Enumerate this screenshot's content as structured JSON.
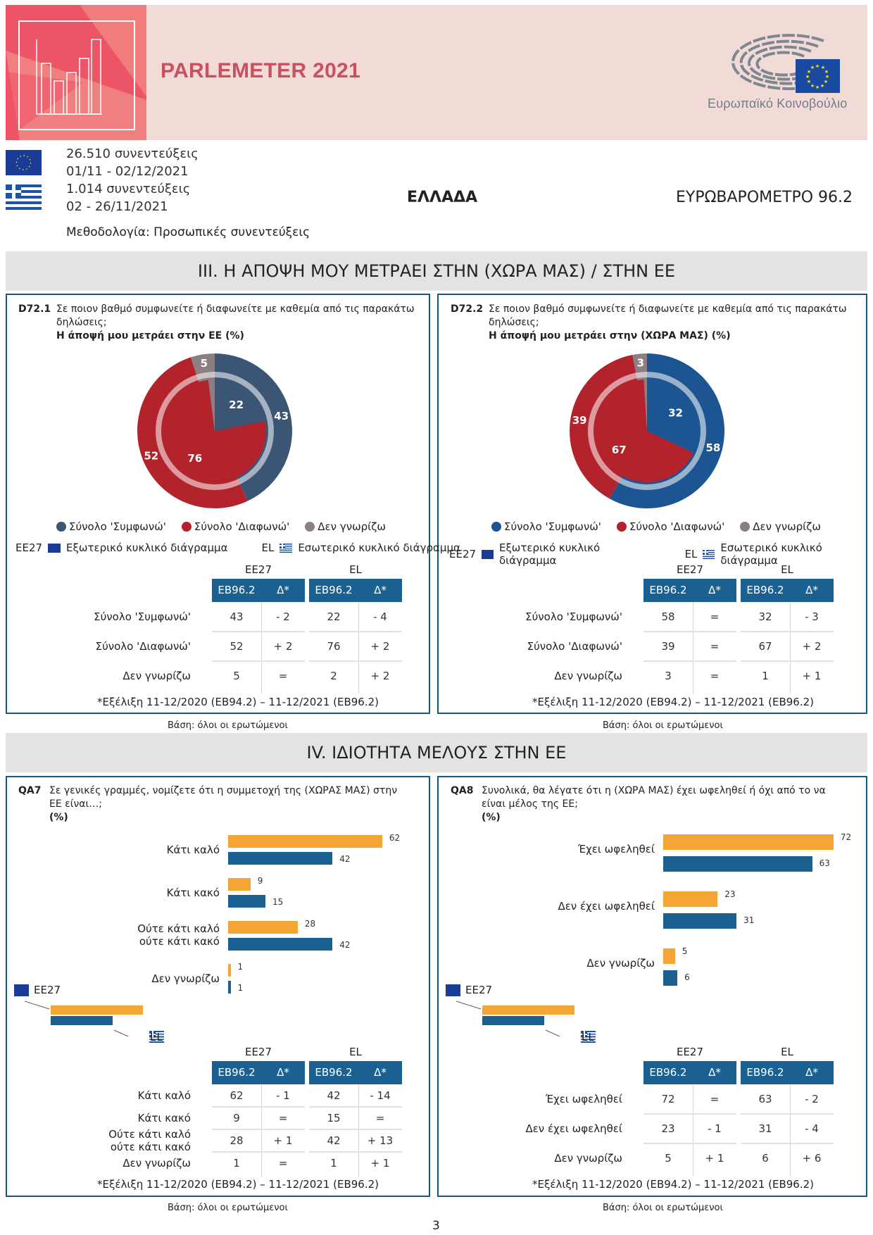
{
  "header": {
    "title": "PARLEMETER 2021",
    "institution": "Ευρωπαϊκό Κοινοβούλιο",
    "eu_interviews": "26.510 συνεντεύξεις",
    "eu_dates": "01/11 - 02/12/2021",
    "gr_interviews": "1.014 συνεντεύξεις",
    "gr_dates": "02 - 26/11/2021",
    "methodology": "Μεθοδολογία: Προσωπικές συνεντεύξεις",
    "country": "ΕΛΛΑΔΑ",
    "survey": "ΕΥΡΩΒΑΡΟΜΕΤΡΟ 96.2"
  },
  "colors": {
    "agree_eu_slate": "#3B5675",
    "agree_blue": "#1D5592",
    "disagree_red": "#B3232C",
    "dontknow_grey": "#8C7F84",
    "ee27_orange": "#F4A534",
    "el_blue": "#1A6191",
    "panel_border": "#19597E"
  },
  "sections": {
    "s3": "III. Η ΑΠΟΨΗ ΜΟΥ ΜΕΤΡΑΕΙ ΣΤΗΝ (ΧΩΡΑ ΜΑΣ) / ΣΤΗΝ ΕΕ",
    "s4": "IV. ΙΔΙΟΤΗΤΑ ΜΕΛΟΥΣ ΣΤΗΝ ΕΕ"
  },
  "common": {
    "legend_agree": "Σύνολο 'Συμφωνώ'",
    "legend_disagree": "Σύνολο 'Διαφωνώ'",
    "legend_dk": "Δεν γνωρίζω",
    "ee27": "ΕΕ27",
    "el": "EL",
    "outer_pie": "Εξωτερικό κυκλικό διάγραμμα",
    "inner_pie": "Εσωτερικό κυκλικό διάγραμμα",
    "col_wave": "EB96.2",
    "col_delta": "Δ*",
    "evolution_note": "*Εξέλιξη 11-12/2020 (EB94.2) – 11-12/2021 (EB96.2)",
    "base": "Βάση: όλοι οι ερωτώμενοι",
    "page_number": "3"
  },
  "chart_data": [
    {
      "type": "pie",
      "id": "D72.1",
      "question": "Σε ποιον βαθμό συμφωνείτε ή διαφωνείτε με καθεμία από τις παρακάτω δηλώσεις;",
      "title": "Η άποψή μου μετράει στην ΕΕ  (%)",
      "categories": [
        "Σύνολο 'Συμφωνώ'",
        "Σύνολο 'Διαφωνώ'",
        "Δεν γνωρίζω"
      ],
      "series": [
        {
          "name": "ΕΕ27 (outer)",
          "values": [
            43,
            52,
            5
          ]
        },
        {
          "name": "EL (inner)",
          "values": [
            22,
            76,
            2
          ]
        }
      ],
      "table": [
        {
          "label": "Σύνολο 'Συμφωνώ'",
          "ee27": "43",
          "ee27_delta": "- 2",
          "el": "22",
          "el_delta": "- 4"
        },
        {
          "label": "Σύνολο 'Διαφωνώ'",
          "ee27": "52",
          "ee27_delta": "+ 2",
          "el": "76",
          "el_delta": "+ 2"
        },
        {
          "label": "Δεν γνωρίζω",
          "ee27": "5",
          "ee27_delta": "=",
          "el": "2",
          "el_delta": "+ 2"
        }
      ]
    },
    {
      "type": "pie",
      "id": "D72.2",
      "question": "Σε ποιον βαθμό συμφωνείτε ή διαφωνείτε με καθεμία από τις παρακάτω δηλώσεις;",
      "title": "Η άποψή μου μετράει στην (ΧΩΡΑ ΜΑΣ)  (%)",
      "categories": [
        "Σύνολο 'Συμφωνώ'",
        "Σύνολο 'Διαφωνώ'",
        "Δεν γνωρίζω"
      ],
      "series": [
        {
          "name": "ΕΕ27 (outer)",
          "values": [
            58,
            39,
            3
          ]
        },
        {
          "name": "EL (inner)",
          "values": [
            32,
            67,
            1
          ]
        }
      ],
      "table": [
        {
          "label": "Σύνολο 'Συμφωνώ'",
          "ee27": "58",
          "ee27_delta": "=",
          "el": "32",
          "el_delta": "- 3"
        },
        {
          "label": "Σύνολο 'Διαφωνώ'",
          "ee27": "39",
          "ee27_delta": "=",
          "el": "67",
          "el_delta": "+ 2"
        },
        {
          "label": "Δεν γνωρίζω",
          "ee27": "3",
          "ee27_delta": "=",
          "el": "1",
          "el_delta": "+ 1"
        }
      ]
    },
    {
      "type": "bar",
      "id": "QA7",
      "question": "Σε γενικές γραμμές, νομίζετε ότι η συμμετοχή της (ΧΩΡΑΣ ΜΑΣ) στην ΕΕ είναι…;",
      "unit": "(%)",
      "categories": [
        "Κάτι καλό",
        "Κάτι κακό",
        "Ούτε κάτι καλό ούτε κάτι κακό",
        "Δεν γνωρίζω"
      ],
      "series": [
        {
          "name": "ΕΕ27",
          "values": [
            62,
            9,
            28,
            1
          ]
        },
        {
          "name": "EL",
          "values": [
            42,
            15,
            42,
            1
          ]
        }
      ],
      "xlim": [
        0,
        65
      ],
      "table": [
        {
          "label": "Κάτι καλό",
          "ee27": "62",
          "ee27_delta": "- 1",
          "el": "42",
          "el_delta": "- 14"
        },
        {
          "label": "Κάτι κακό",
          "ee27": "9",
          "ee27_delta": "=",
          "el": "15",
          "el_delta": "="
        },
        {
          "label": "Ούτε κάτι καλό ούτε κάτι κακό",
          "ee27": "28",
          "ee27_delta": "+ 1",
          "el": "42",
          "el_delta": "+ 13"
        },
        {
          "label": "Δεν γνωρίζω",
          "ee27": "1",
          "ee27_delta": "=",
          "el": "1",
          "el_delta": "+ 1"
        }
      ]
    },
    {
      "type": "bar",
      "id": "QA8",
      "question": "Συνολικά, θα λέγατε ότι η (ΧΩΡΑ ΜΑΣ) έχει ωφεληθεί ή όχι από το να είναι μέλος της ΕΕ;",
      "unit": "(%)",
      "categories": [
        "Έχει ωφεληθεί",
        "Δεν έχει ωφεληθεί",
        "Δεν γνωρίζω"
      ],
      "series": [
        {
          "name": "ΕΕ27",
          "values": [
            72,
            23,
            5
          ]
        },
        {
          "name": "EL",
          "values": [
            63,
            31,
            6
          ]
        }
      ],
      "xlim": [
        0,
        75
      ],
      "table": [
        {
          "label": "Έχει ωφεληθεί",
          "ee27": "72",
          "ee27_delta": "=",
          "el": "63",
          "el_delta": "- 2"
        },
        {
          "label": "Δεν έχει ωφεληθεί",
          "ee27": "23",
          "ee27_delta": "- 1",
          "el": "31",
          "el_delta": "- 4"
        },
        {
          "label": "Δεν γνωρίζω",
          "ee27": "5",
          "ee27_delta": "+ 1",
          "el": "6",
          "el_delta": "+ 6"
        }
      ]
    }
  ]
}
